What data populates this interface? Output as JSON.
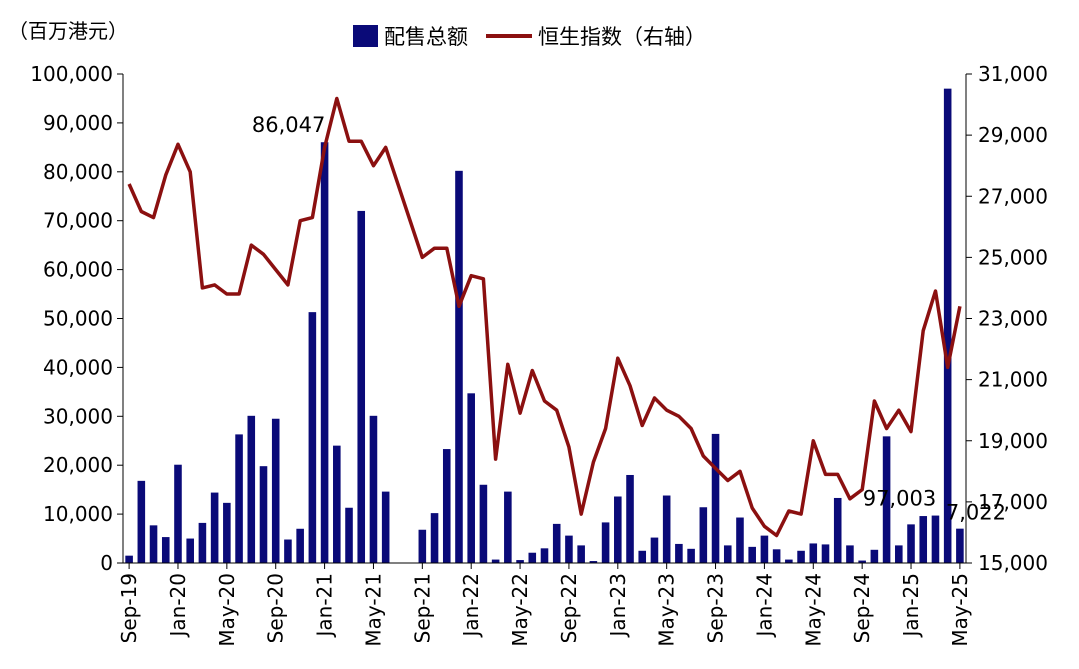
{
  "chart_data": {
    "type": "bar+line",
    "ylabel_left": "（百万港元）",
    "yticks_left": [
      "100,000",
      "90,000",
      "80,000",
      "70,000",
      "60,000",
      "50,000",
      "40,000",
      "30,000",
      "20,000",
      "10,000",
      "0"
    ],
    "yticks_right": [
      "31,000",
      "29,000",
      "27,000",
      "25,000",
      "23,000",
      "21,000",
      "19,000",
      "17,000",
      "15,000"
    ],
    "ylim_left": [
      0,
      100000
    ],
    "ylim_right": [
      15000,
      31000
    ],
    "xticks": [
      "Sep-19",
      "Jan-20",
      "May-20",
      "Sep-20",
      "Jan-21",
      "May-21",
      "Sep-21",
      "Jan-22",
      "May-22",
      "Sep-22",
      "Jan-23",
      "May-23",
      "Sep-23",
      "Jan-24",
      "May-24",
      "Sep-24",
      "Jan-25",
      "May-25"
    ],
    "legend": {
      "placement": "top-center",
      "bar_label": "配售总额",
      "line_label": "恒生指数（右轴）"
    },
    "annotations": [
      {
        "text": "86,047",
        "month": "Jan-21"
      },
      {
        "text": "97,003",
        "month": "Mar-25"
      },
      {
        "text": "7,022",
        "month": "May-25"
      }
    ],
    "colors": {
      "bar": "#0a0a78",
      "line": "#8b1010"
    },
    "months": [
      "Sep-19",
      "Oct-19",
      "Nov-19",
      "Dec-19",
      "Jan-20",
      "Feb-20",
      "Mar-20",
      "Apr-20",
      "May-20",
      "Jun-20",
      "Jul-20",
      "Aug-20",
      "Sep-20",
      "Oct-20",
      "Nov-20",
      "Dec-20",
      "Jan-21",
      "Feb-21",
      "Mar-21",
      "Apr-21",
      "May-21",
      "Jun-21",
      "Jul-21",
      "Aug-21",
      "Sep-21",
      "Oct-21",
      "Nov-21",
      "Dec-21",
      "Jan-22",
      "Feb-22",
      "Mar-22",
      "Apr-22",
      "May-22",
      "Jun-22",
      "Jul-22",
      "Aug-22",
      "Sep-22",
      "Oct-22",
      "Nov-22",
      "Dec-22",
      "Jan-23",
      "Feb-23",
      "Mar-23",
      "Apr-23",
      "May-23",
      "Jun-23",
      "Jul-23",
      "Aug-23",
      "Sep-23",
      "Oct-23",
      "Nov-23",
      "Dec-23",
      "Jan-24",
      "Feb-24",
      "Mar-24",
      "Apr-24",
      "May-24",
      "Jun-24",
      "Jul-24",
      "Aug-24",
      "Sep-24",
      "Oct-24",
      "Nov-24",
      "Dec-24",
      "Jan-25",
      "Feb-25",
      "Mar-25",
      "Apr-25",
      "May-25"
    ],
    "placement_amount": [
      1500,
      16800,
      7700,
      5300,
      20100,
      5000,
      8200,
      14400,
      12300,
      26300,
      30100,
      19800,
      29500,
      4800,
      7000,
      51300,
      86047,
      24000,
      11300,
      72000,
      30100,
      14600,
      0,
      0,
      6800,
      10200,
      23300,
      80200,
      34700,
      16000,
      700,
      14600,
      600,
      2100,
      3000,
      8000,
      5600,
      3600,
      400,
      8300,
      13600,
      18000,
      2500,
      5200,
      13800,
      3900,
      2900,
      11400,
      26400,
      3600,
      9300,
      3300,
      5600,
      2800,
      700,
      2500,
      4000,
      3800,
      13300,
      3600,
      500,
      2700,
      25900,
      3600,
      7900,
      9600,
      9700,
      97003,
      7022
    ],
    "hsi": [
      27400,
      26500,
      26300,
      27700,
      28700,
      27800,
      24000,
      24100,
      23800,
      23800,
      25400,
      25100,
      24600,
      24100,
      26200,
      26300,
      28600,
      30200,
      28800,
      28800,
      28000,
      28600,
      27400,
      26200,
      25000,
      25300,
      25300,
      23400,
      24400,
      24300,
      18400,
      21500,
      19900,
      21300,
      20300,
      20000,
      18800,
      16600,
      18300,
      19400,
      21700,
      20800,
      19500,
      20400,
      20000,
      19800,
      19400,
      18500,
      18100,
      17700,
      18000,
      16800,
      16200,
      15900,
      16700,
      16600,
      19000,
      17900,
      17900,
      17100,
      17400,
      20300,
      19400,
      20000,
      19300,
      22600,
      23900,
      21400,
      23400
    ]
  }
}
